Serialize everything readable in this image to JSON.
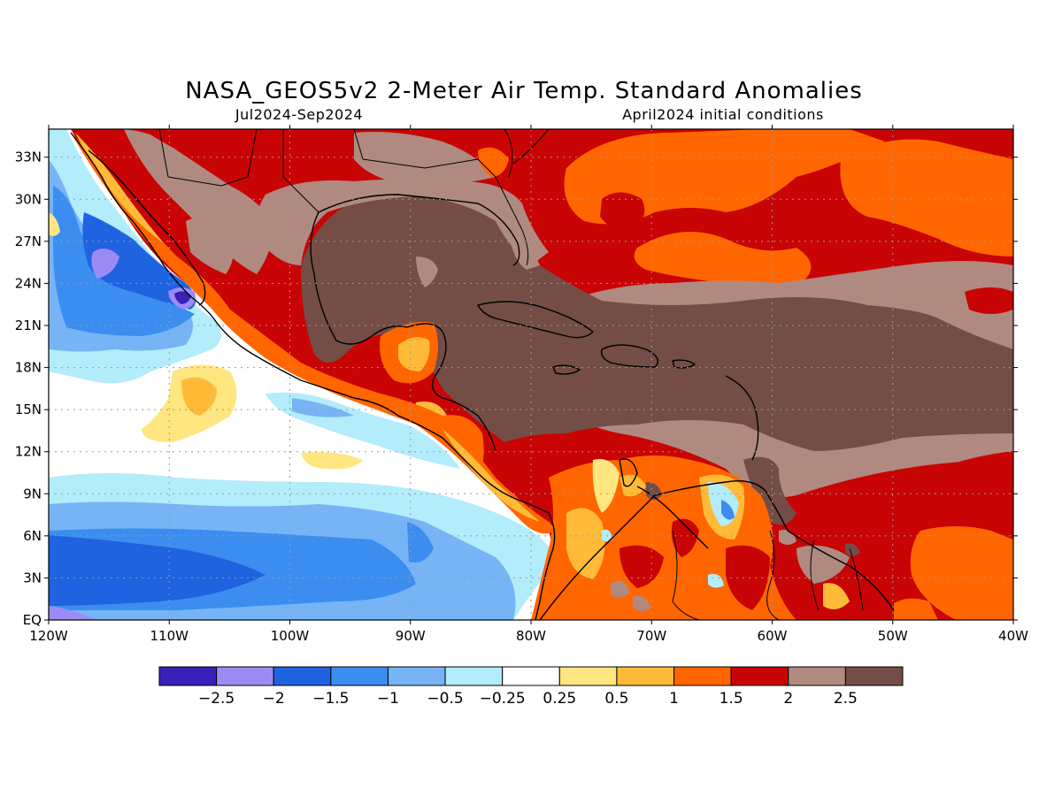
{
  "title": "NASA_GEOS5v2 2-Meter Air Temp. Standard Anomalies",
  "subtitle_left": "Jul2024-Sep2024",
  "subtitle_right": "April2024 initial conditions",
  "map": {
    "lon_range": [
      -120,
      -40
    ],
    "lat_range": [
      0,
      35
    ],
    "grid": "dotted",
    "lon_ticks": [
      "120W",
      "110W",
      "100W",
      "90W",
      "80W",
      "70W",
      "60W",
      "50W",
      "40W"
    ],
    "lat_ticks": [
      "EQ",
      "3N",
      "6N",
      "9N",
      "12N",
      "15N",
      "18N",
      "21N",
      "24N",
      "27N",
      "30N",
      "33N"
    ]
  },
  "colorbar": {
    "colors": [
      "#3a20b8",
      "#9b8cf5",
      "#1f63e0",
      "#3b8ef0",
      "#76b4f6",
      "#b3ecfa",
      "#ffffff",
      "#ffe680",
      "#ffbb38",
      "#ff6600",
      "#c80404",
      "#b08a80",
      "#734d46"
    ],
    "labels": [
      "-2.5",
      "-2",
      "-1.5",
      "-1",
      "-0.5",
      "-0.25",
      "0.25",
      "0.5",
      "1",
      "1.5",
      "2",
      "2.5"
    ]
  },
  "chart_data": {
    "type": "heatmap",
    "title": "NASA_GEOS5v2 2-Meter Air Temp. Standard Anomalies",
    "xlabel": "",
    "ylabel": "",
    "xlim": [
      -120,
      -40
    ],
    "ylim": [
      0,
      35
    ],
    "levels": [
      -2.5,
      -2,
      -1.5,
      -1,
      -0.5,
      -0.25,
      0.25,
      0.5,
      1,
      1.5,
      2,
      2.5
    ]
  }
}
